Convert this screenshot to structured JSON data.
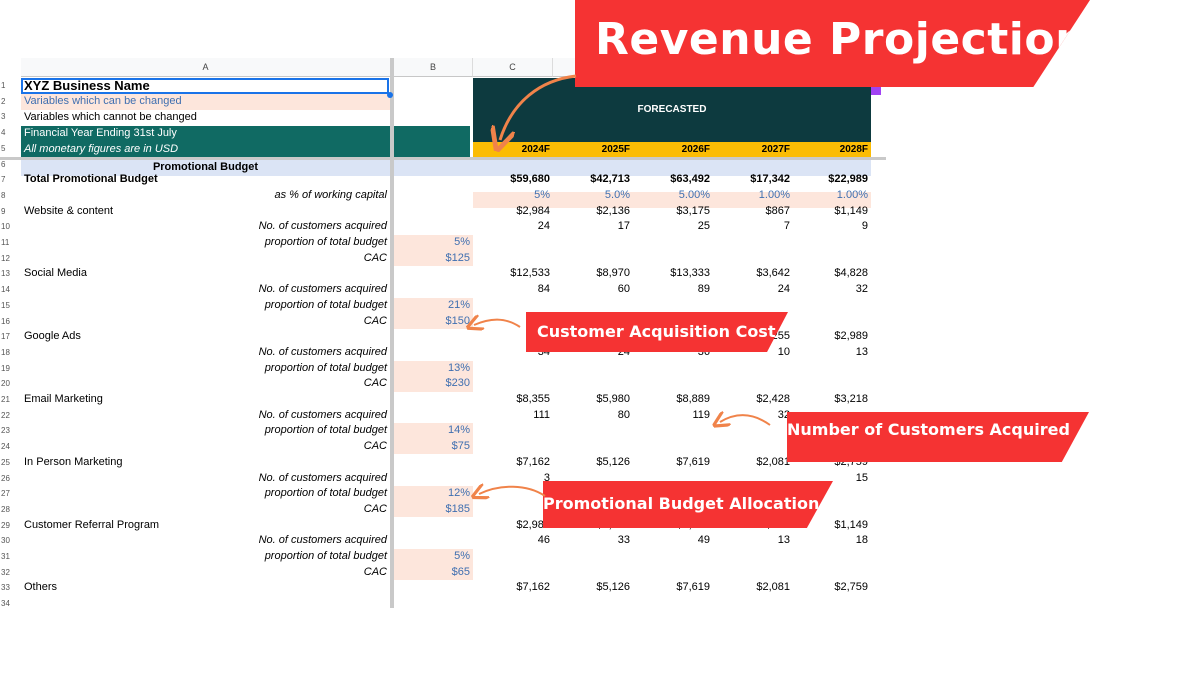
{
  "banner": {
    "title": "Revenue Projection"
  },
  "callouts": {
    "cac": "Customer Acquisition Cost",
    "customers": "Number of Customers  Acquired",
    "budget": "Promotional Budget Allocation"
  },
  "columns": {
    "a": "A",
    "b": "B",
    "c": "C"
  },
  "rows": [
    "1",
    "2",
    "3",
    "4",
    "5",
    "6",
    "7",
    "8",
    "9",
    "10",
    "11",
    "12",
    "13",
    "14",
    "15",
    "16",
    "17",
    "18",
    "19",
    "20",
    "21",
    "22",
    "23",
    "24",
    "25",
    "26",
    "27",
    "28",
    "29",
    "30",
    "31",
    "32",
    "33",
    "34"
  ],
  "header": {
    "business_name": "XYZ Business Name",
    "legend_changeable": "Variables which can be changed",
    "legend_fixed": "Variables which cannot be changed",
    "fy": "Financial Year Ending 31st July",
    "currency": "All monetary figures are in USD",
    "forecasted": "FORECASTED",
    "years": [
      "2024F",
      "2025F",
      "2026F",
      "2027F",
      "2028F"
    ]
  },
  "colors": {
    "teal_dark": "#0d3a3f",
    "teal": "#106a63",
    "year_band": "#fbbc04",
    "editable": "#fde6dc",
    "section": "#dbe4f5",
    "banner_red": "#f53333",
    "arrow": "#f0834a"
  },
  "section_title": "Promotional Budget",
  "total": {
    "label": "Total Promotional Budget",
    "values": [
      "$59,680",
      "$42,713",
      "$63,492",
      "$17,342",
      "$22,989"
    ],
    "pct_label": "as % of working capital",
    "pct_values": [
      "5%",
      "5.0%",
      "5.00%",
      "1.00%",
      "1.00%"
    ]
  },
  "channels": [
    {
      "name": "Website & content",
      "budget": [
        "$2,984",
        "$2,136",
        "$3,175",
        "$867",
        "$1,149"
      ],
      "customers_label": "No. of customers acquired",
      "customers": [
        "24",
        "17",
        "25",
        "7",
        "9"
      ],
      "proportion_label": "proportion of total budget",
      "proportion": "5%",
      "cac_label": "CAC",
      "cac": "$125"
    },
    {
      "name": "Social Media",
      "budget": [
        "$12,533",
        "$8,970",
        "$13,333",
        "$3,642",
        "$4,828"
      ],
      "customers_label": "No. of customers acquired",
      "customers": [
        "84",
        "60",
        "89",
        "24",
        "32"
      ],
      "proportion_label": "proportion of total budget",
      "proportion": "21%",
      "cac_label": "CAC",
      "cac": "$150"
    },
    {
      "name": "Google Ads",
      "budget": [
        "$7",
        "",
        "",
        "1,255",
        "$2,989"
      ],
      "customers_label": "No. of customers acquired",
      "customers": [
        "34",
        "24",
        "36",
        "10",
        "13"
      ],
      "proportion_label": "proportion of total budget",
      "proportion": "13%",
      "cac_label": "CAC",
      "cac": "$230"
    },
    {
      "name": "Email Marketing",
      "budget": [
        "$8,355",
        "$5,980",
        "$8,889",
        "$2,428",
        "$3,218"
      ],
      "customers_label": "No. of customers acquired",
      "customers": [
        "111",
        "80",
        "119",
        "32",
        ""
      ],
      "proportion_label": "proportion of total budget",
      "proportion": "14%",
      "cac_label": "CAC",
      "cac": "$75"
    },
    {
      "name": "In Person Marketing",
      "budget": [
        "$7,162",
        "$5,126",
        "$7,619",
        "$2,081",
        "$2,759"
      ],
      "customers_label": "No. of customers acquired",
      "customers": [
        "3",
        "",
        "",
        "",
        "15"
      ],
      "proportion_label": "proportion of total budget",
      "proportion": "12%",
      "cac_label": "CAC",
      "cac": "$185"
    },
    {
      "name": "Customer Referral Program",
      "budget": [
        "$2,984",
        "$2,136",
        "$3,175",
        "$867",
        "$1,149"
      ],
      "customers_label": "No. of customers acquired",
      "customers": [
        "46",
        "33",
        "49",
        "13",
        "18"
      ],
      "proportion_label": "proportion of total budget",
      "proportion": "5%",
      "cac_label": "CAC",
      "cac": "$65"
    },
    {
      "name": "Others",
      "budget": [
        "$7,162",
        "$5,126",
        "$7,619",
        "$2,081",
        "$2,759"
      ]
    }
  ]
}
